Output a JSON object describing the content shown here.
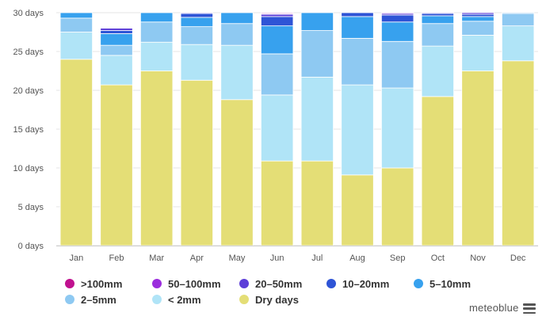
{
  "chart_data": {
    "type": "bar",
    "stacked": true,
    "title": "",
    "xlabel": "",
    "ylabel": "",
    "ylim": [
      0,
      30
    ],
    "yticks": [
      "0 days",
      "5 days",
      "10 days",
      "15 days",
      "20 days",
      "25 days",
      "30 days"
    ],
    "categories": [
      "Jan",
      "Feb",
      "Mar",
      "Apr",
      "May",
      "Jun",
      "Jul",
      "Aug",
      "Sep",
      "Oct",
      "Nov",
      "Dec"
    ],
    "series": [
      {
        "name": "Dry days",
        "color": "#e4de76",
        "values": [
          24.0,
          20.7,
          22.5,
          21.3,
          18.8,
          10.9,
          10.9,
          9.1,
          10.0,
          19.2,
          22.5,
          23.8
        ]
      },
      {
        "name": "< 2mm",
        "color": "#b0e4f7",
        "values": [
          3.5,
          3.8,
          3.7,
          4.6,
          7.0,
          8.5,
          10.8,
          11.6,
          10.3,
          6.5,
          4.6,
          4.5
        ]
      },
      {
        "name": "2–5mm",
        "color": "#8ec9f2",
        "values": [
          1.8,
          1.3,
          2.6,
          2.3,
          2.8,
          5.3,
          6.0,
          6.0,
          6.0,
          2.9,
          1.8,
          1.6
        ]
      },
      {
        "name": "5–10mm",
        "color": "#37a1ee",
        "values": [
          0.7,
          1.5,
          1.2,
          1.2,
          1.4,
          3.6,
          2.3,
          2.8,
          2.5,
          1.0,
          0.6,
          0.1
        ]
      },
      {
        "name": "10–20mm",
        "color": "#2e54d6",
        "values": [
          0.0,
          0.4,
          0.0,
          0.5,
          0.0,
          1.2,
          0.0,
          0.5,
          0.9,
          0.3,
          0.3,
          0.0
        ]
      },
      {
        "name": "20–50mm",
        "color": "#5d3fd8",
        "values": [
          0.0,
          0.3,
          0.0,
          0.1,
          0.0,
          0.3,
          0.0,
          0.0,
          0.2,
          0.1,
          0.2,
          0.0
        ]
      },
      {
        "name": "50–100mm",
        "color": "#9b2ddd",
        "values": [
          0.0,
          0.0,
          0.0,
          0.0,
          0.0,
          0.1,
          0.0,
          0.0,
          0.1,
          0.0,
          0.0,
          0.0
        ]
      },
      {
        "name": ">100mm",
        "color": "#c0118f",
        "values": [
          0.0,
          0.0,
          0.0,
          0.0,
          0.0,
          0.1,
          0.0,
          0.0,
          0.0,
          0.0,
          0.0,
          0.0
        ]
      }
    ],
    "legend_order": [
      ">100mm",
      "50–100mm",
      "20–50mm",
      "10–20mm",
      "5–10mm",
      "2–5mm",
      "< 2mm",
      "Dry days"
    ],
    "legend_position": "bottom",
    "grid": true
  },
  "legend_labels": {
    "gt100": ">100mm",
    "r50_100": "50–100mm",
    "r20_50": "20–50mm",
    "r10_20": "10–20mm",
    "r5_10": "5–10mm",
    "r2_5": "2–5mm",
    "lt2": "< 2mm",
    "dry": "Dry days"
  },
  "brand": "meteoblue",
  "icons": {
    "menu": "menu-icon"
  }
}
